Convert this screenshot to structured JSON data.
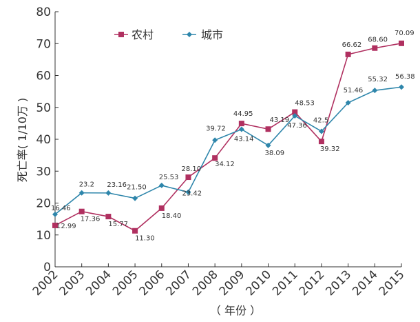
{
  "chart_data": {
    "type": "line",
    "title": "",
    "xlabel": "（ 年份 ）",
    "ylabel": "死亡率( 1/10万 )",
    "categories": [
      "2002",
      "2003",
      "2004",
      "2005",
      "2006",
      "2007",
      "2008",
      "2009",
      "2010",
      "2011",
      "2012",
      "2013",
      "2014",
      "2015"
    ],
    "ylim": [
      0,
      80
    ],
    "yticks": [
      "0",
      "10",
      "20",
      "30",
      "40",
      "50",
      "60",
      "70",
      "80"
    ],
    "grid": false,
    "legend": "top-left",
    "series": [
      {
        "name": "农村",
        "color": "#b03060",
        "marker": "square",
        "values": [
          12.99,
          17.36,
          15.77,
          11.3,
          18.4,
          28.1,
          34.12,
          44.95,
          43.19,
          48.53,
          39.32,
          66.62,
          68.6,
          70.09
        ],
        "labels": [
          "12.99",
          "17.36",
          "15.77",
          "11.30",
          "18.40",
          "28.10",
          "34.12",
          "44.95",
          "43.19",
          "48.53",
          "39.32",
          "66.62",
          "68.60",
          "70.09"
        ]
      },
      {
        "name": "城市",
        "color": "#2e86ab",
        "marker": "diamond",
        "values": [
          16.46,
          23.2,
          23.16,
          21.5,
          25.53,
          23.42,
          39.72,
          43.14,
          38.09,
          47.36,
          42.5,
          51.46,
          55.32,
          56.38
        ],
        "labels": [
          "16.46",
          "23.2",
          "23.16",
          "21.50",
          "25.53",
          "23.42",
          "39.72",
          "43.14",
          "38.09",
          "47.36",
          "42.5",
          "51.46",
          "55.32",
          "56.38"
        ]
      }
    ]
  }
}
